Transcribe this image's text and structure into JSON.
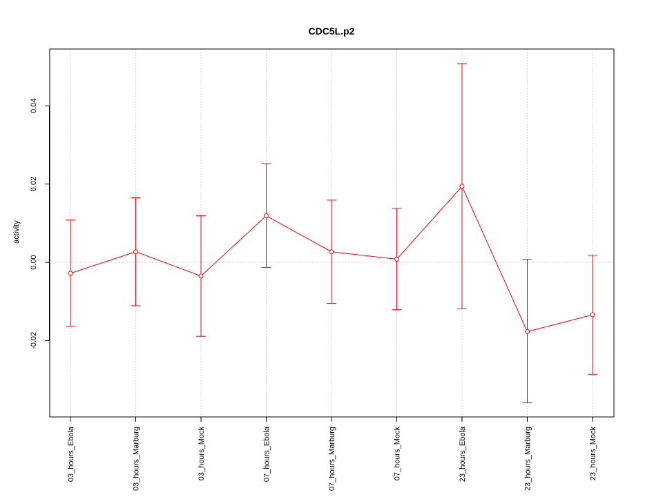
{
  "chart_data": {
    "type": "line",
    "title": "CDC5L.p2",
    "xlabel": "",
    "ylabel": "activity",
    "categories": [
      "03_hours_Ebola",
      "03_hours_Marburg",
      "03_hours_Mock",
      "07_hours_Ebola",
      "07_hours_Marburg",
      "07_hours_Mock",
      "23_hours_Ebola",
      "23_hours_Marburg",
      "23_hours_Mock"
    ],
    "series": [
      {
        "values": [
          -0.0028,
          0.0027,
          -0.0035,
          0.0119,
          0.0027,
          0.0008,
          0.0194,
          -0.0177,
          -0.0134
        ],
        "lower": [
          -0.0164,
          -0.0111,
          -0.0189,
          -0.0013,
          -0.0105,
          -0.0121,
          -0.0119,
          -0.0359,
          -0.0286
        ],
        "upper": [
          0.0108,
          0.0165,
          0.0119,
          0.0252,
          0.0159,
          0.0138,
          0.0508,
          0.0008,
          0.0018
        ]
      }
    ],
    "ylim": [
      -0.0395,
      0.0545
    ],
    "yticks": [
      -0.02,
      0.0,
      0.02,
      0.04
    ],
    "ytick_labels": [
      "-0.02",
      "0.00",
      "0.02",
      "0.04"
    ],
    "grid": true,
    "line_color": "#ff0000",
    "grid_color": "#d3d3d3"
  }
}
